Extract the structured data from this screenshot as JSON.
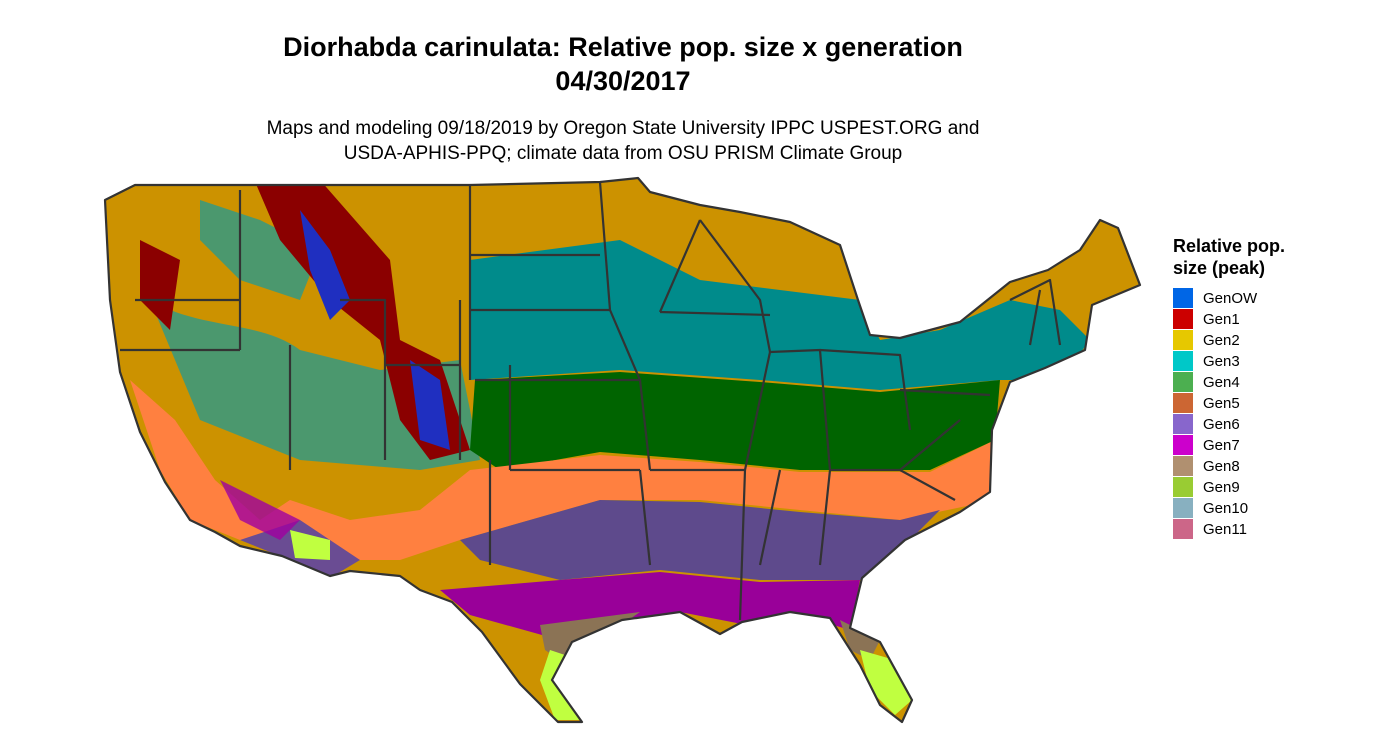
{
  "header": {
    "title": "Diorhabda carinulata: Relative pop. size x generation",
    "date": "04/30/2017",
    "subtitle_lines": [
      "Maps and modeling 09/18/2019 by Oregon State University IPPC USPEST.ORG and",
      "USDA-APHIS-PPQ; climate data from OSU PRISM Climate Group"
    ]
  },
  "legend": {
    "title_lines": [
      "Relative pop.",
      "size (peak)"
    ],
    "items": [
      {
        "label": "GenOW",
        "color": "#0066e6"
      },
      {
        "label": "Gen1",
        "color": "#cc0000"
      },
      {
        "label": "Gen2",
        "color": "#e6c800"
      },
      {
        "label": "Gen3",
        "color": "#00c8c8"
      },
      {
        "label": "Gen4",
        "color": "#4caf50"
      },
      {
        "label": "Gen5",
        "color": "#cc6633"
      },
      {
        "label": "Gen6",
        "color": "#8866cc"
      },
      {
        "label": "Gen7",
        "color": "#cc00cc"
      },
      {
        "label": "Gen8",
        "color": "#b09070"
      },
      {
        "label": "Gen9",
        "color": "#99cc33"
      },
      {
        "label": "Gen10",
        "color": "#88b0c0"
      },
      {
        "label": "Gen11",
        "color": "#cc6688"
      }
    ]
  }
}
